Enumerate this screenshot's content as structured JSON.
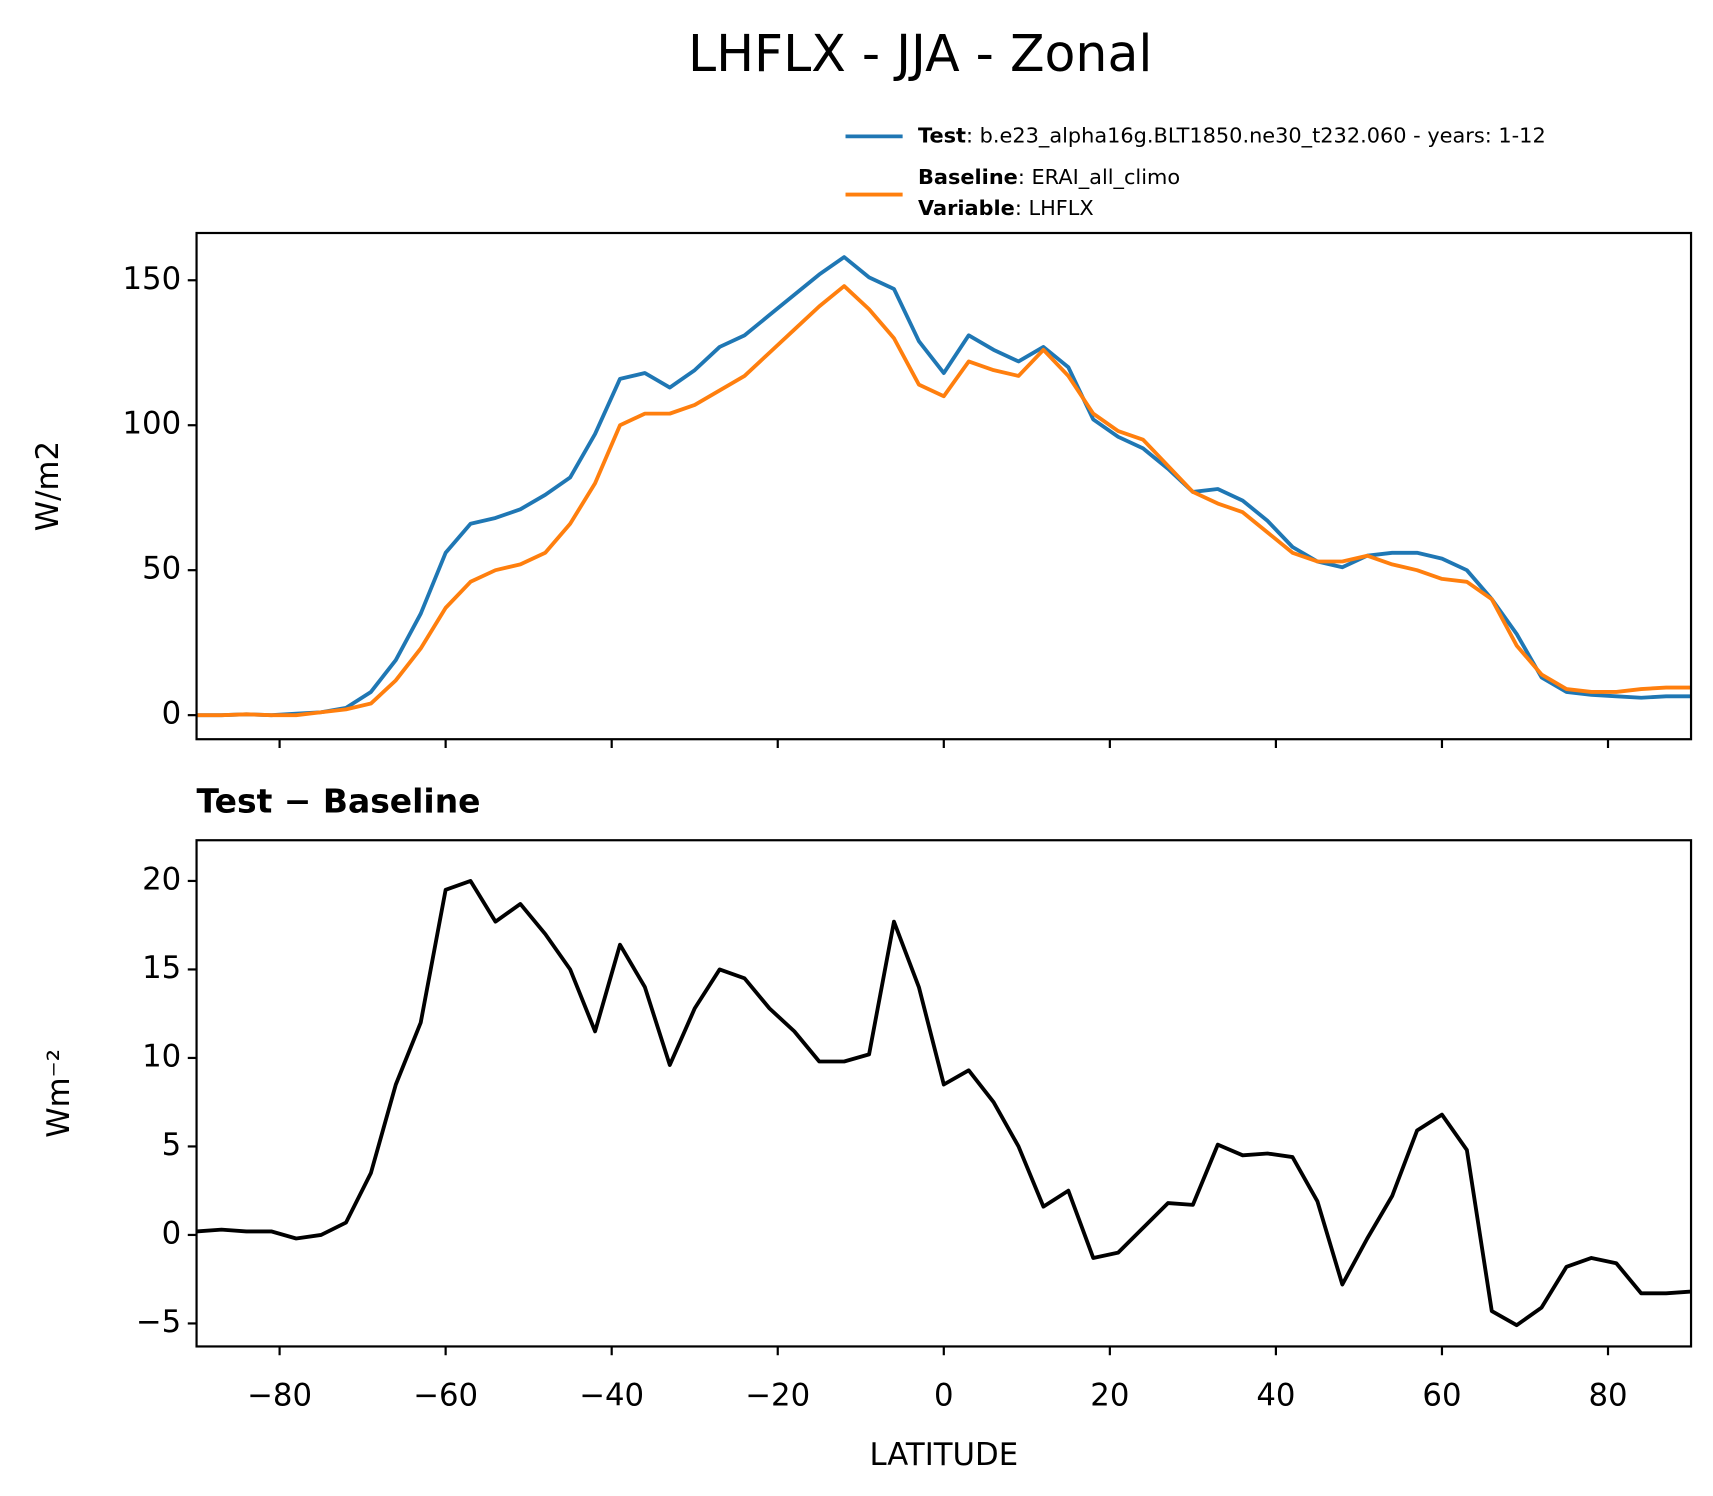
{
  "chart_data": [
    {
      "type": "line",
      "title": "LHFLX - JJA - Zonal",
      "ylabel": "W/m2",
      "x": [
        -90,
        -87,
        -84,
        -81,
        -78,
        -75,
        -72,
        -69,
        -66,
        -63,
        -60,
        -57,
        -54,
        -51,
        -48,
        -45,
        -42,
        -39,
        -36,
        -33,
        -30,
        -27,
        -24,
        -21,
        -18,
        -15,
        -12,
        -9,
        -6,
        -3,
        0,
        3,
        6,
        9,
        12,
        15,
        18,
        21,
        24,
        27,
        30,
        33,
        36,
        39,
        42,
        45,
        48,
        51,
        54,
        57,
        60,
        63,
        66,
        69,
        72,
        75,
        78,
        81,
        84,
        87,
        90
      ],
      "series": [
        {
          "name": "Test",
          "description": ": b.e23_alpha16g.BLT1850.ne30_t232.060 - years: 1-12",
          "color": "#1f77b4",
          "values": [
            0,
            0,
            0.3,
            0,
            0.5,
            1,
            2.5,
            8,
            19,
            35,
            56,
            66,
            68,
            71,
            76,
            82,
            97,
            116,
            118,
            113,
            119,
            127,
            131,
            138,
            145,
            152,
            158,
            151,
            147,
            129,
            118,
            131,
            126,
            122,
            127,
            120,
            102,
            96,
            92,
            85,
            77,
            78,
            74,
            67,
            58,
            53,
            51,
            55,
            56,
            56,
            54,
            50,
            40,
            28,
            13,
            8,
            7,
            6.5,
            6,
            6.5,
            6.5
          ]
        },
        {
          "name": "Baseline",
          "description": ": ERAI_all_climo",
          "color": "#ff7f0e",
          "values": [
            0,
            0,
            0.3,
            0,
            0,
            1,
            2,
            4,
            12,
            23,
            37,
            46,
            50,
            52,
            56,
            66,
            80,
            100,
            104,
            104,
            107,
            112,
            117,
            125,
            133,
            141,
            148,
            140,
            130,
            114,
            110,
            122,
            119,
            117,
            126,
            117,
            104,
            98,
            95,
            86,
            77,
            73,
            70,
            63,
            56,
            53,
            53,
            55,
            52,
            50,
            47,
            46,
            40,
            24,
            14,
            9,
            8,
            8,
            9,
            9.5,
            9.5
          ]
        }
      ],
      "legend_extra": {
        "name": "Variable",
        "description": ": LHFLX"
      },
      "xlim": [
        -90,
        90
      ],
      "xticks": [
        -80,
        -60,
        -40,
        -20,
        0,
        20,
        40,
        60,
        80
      ],
      "ylim": [
        -8.3,
        166.3
      ],
      "yticks": [
        0,
        50,
        100,
        150
      ]
    },
    {
      "type": "line",
      "title": "Test − Baseline",
      "ylabel": "Wm⁻²",
      "xlabel": "LATITUDE",
      "color": "#000000",
      "x": [
        -90,
        -87,
        -84,
        -81,
        -78,
        -75,
        -72,
        -69,
        -66,
        -63,
        -60,
        -57,
        -54,
        -51,
        -48,
        -45,
        -42,
        -39,
        -36,
        -33,
        -30,
        -27,
        -24,
        -21,
        -18,
        -15,
        -12,
        -9,
        -6,
        -3,
        0,
        3,
        6,
        9,
        12,
        15,
        18,
        21,
        24,
        27,
        30,
        33,
        36,
        39,
        42,
        45,
        48,
        51,
        54,
        57,
        60,
        63,
        66,
        69,
        72,
        75,
        78,
        81,
        84,
        87,
        90
      ],
      "values": [
        0.2,
        0.3,
        0.2,
        0.2,
        -0.2,
        0,
        0.7,
        3.5,
        8.5,
        12,
        19.5,
        20,
        17.7,
        18.7,
        17,
        15,
        11.5,
        16.4,
        14,
        9.6,
        12.8,
        15,
        14.5,
        12.8,
        11.5,
        9.8,
        9.8,
        10.2,
        17.7,
        14,
        8.5,
        9.3,
        7.5,
        5,
        1.6,
        2.5,
        -1.3,
        -1,
        0.4,
        1.8,
        1.7,
        5.1,
        4.5,
        4.6,
        4.4,
        1.9,
        -2.8,
        -0.2,
        2.2,
        5.9,
        6.8,
        4.8,
        -4.3,
        -5.1,
        -4.1,
        -1.8,
        -1.3,
        -1.6,
        -3.3,
        -3.3,
        -3.2
      ],
      "xlim": [
        -90,
        90
      ],
      "xticks": [
        {
          "value": -80,
          "label": "−80"
        },
        {
          "value": -60,
          "label": "−60"
        },
        {
          "value": -40,
          "label": "−40"
        },
        {
          "value": -20,
          "label": "−20"
        },
        0,
        20,
        40,
        60,
        80
      ],
      "ylim": [
        -6.3,
        22.3
      ],
      "yticks": [
        {
          "value": -5,
          "label": "−5"
        },
        0,
        5,
        10,
        15,
        20
      ]
    }
  ]
}
